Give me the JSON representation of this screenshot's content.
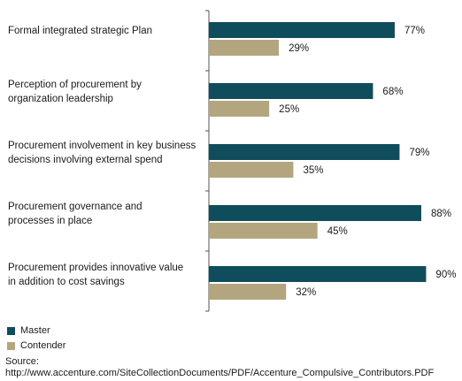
{
  "chart_data": {
    "type": "bar",
    "orientation": "horizontal",
    "categories": [
      [
        "Formal integrated strategic Plan"
      ],
      [
        "Perception of procurement by",
        "organization leadership"
      ],
      [
        "Procurement involvement in key business",
        "decisions involving external spend"
      ],
      [
        "Procurement governance and",
        "processes in place"
      ],
      [
        "Procurement provides innovative value",
        "in addition to cost savings"
      ]
    ],
    "series": [
      {
        "name": "Master",
        "color": "#0f4d5c",
        "values": [
          77,
          68,
          79,
          88,
          90
        ],
        "labels": [
          "77%",
          "68%",
          "79%",
          "88%",
          "90%"
        ]
      },
      {
        "name": "Contender",
        "color": "#b3a67f",
        "values": [
          29,
          25,
          35,
          45,
          32
        ],
        "labels": [
          "29%",
          "25%",
          "35%",
          "45%",
          "32%"
        ]
      }
    ],
    "value_unit": "%",
    "xlim": [
      0,
      100
    ],
    "grid": false
  },
  "legend": {
    "master": "Master",
    "contender": "Contender"
  },
  "source": {
    "label": "Source:",
    "text": "http://www.accenture.com/SiteCollectionDocuments/PDF/Accenture_Compulsive_Contributors.PDF"
  }
}
